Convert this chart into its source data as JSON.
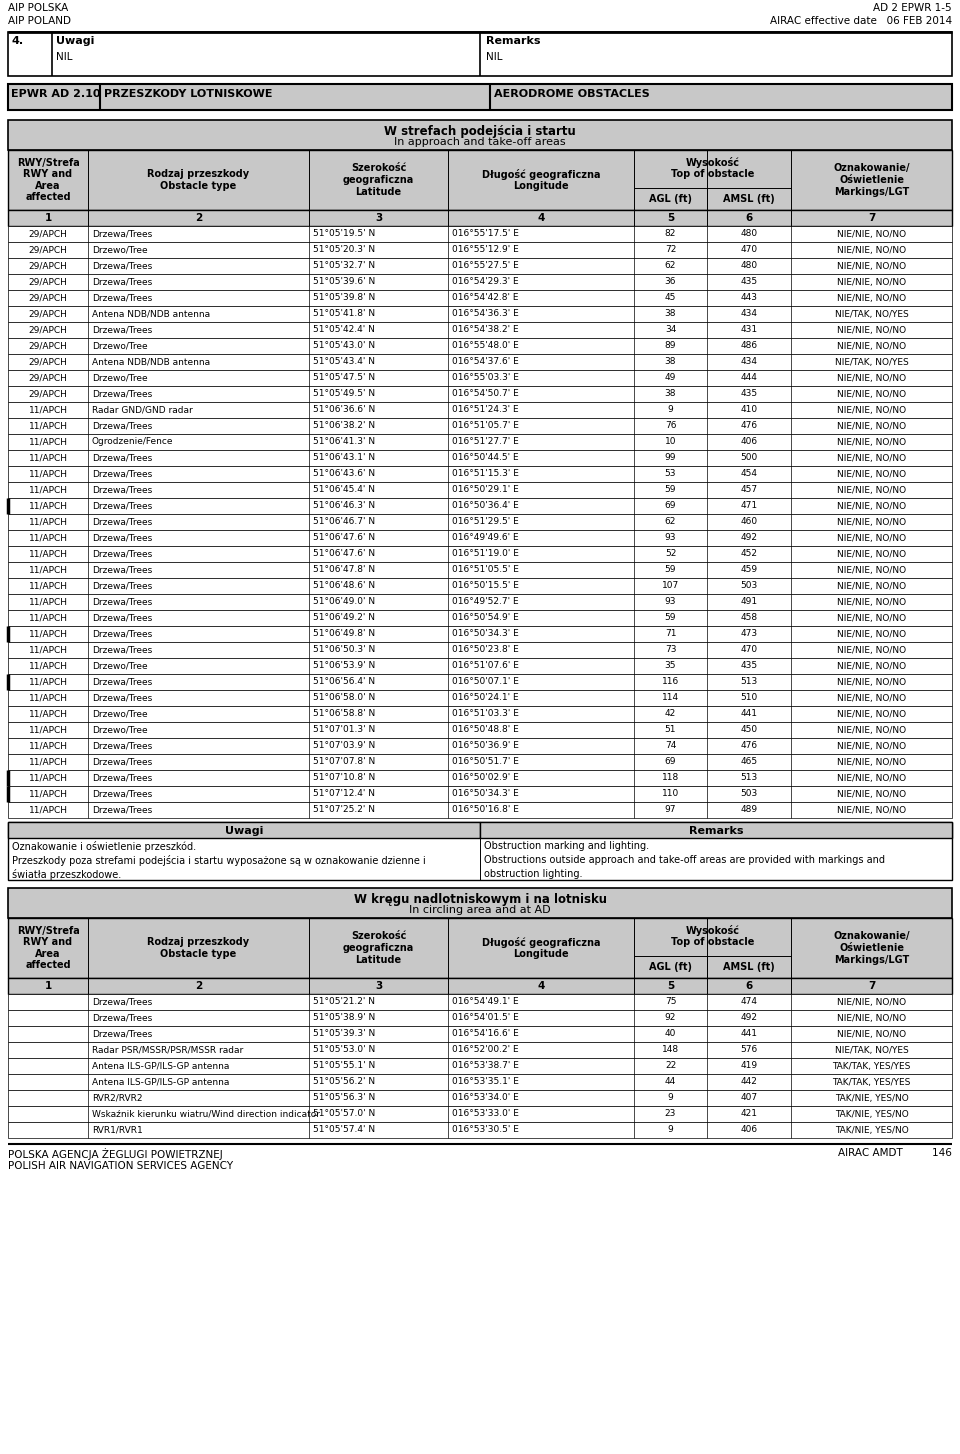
{
  "header_left1": "AIP POLSKA",
  "header_left2": "AIP POLAND",
  "header_right1": "AD 2 EPWR 1-5",
  "header_right2": "AIRAC effective date",
  "header_date": "06 FEB 2014",
  "section4_num": "4.",
  "section4_label_pl": "Uwagi",
  "section4_label_en": "Remarks",
  "section4_val_pl": "NIL",
  "section4_val_en": "NIL",
  "epwr_code": "EPWR AD 2.10",
  "epwr_label_pl": "PRZESZKODY LOTNISKOWE",
  "epwr_label_en": "AERODROME OBSTACLES",
  "table1_title_pl": "W strefach podejścia i startu",
  "table1_title_en": "In approach and take-off areas",
  "rows1": [
    [
      "29/APCH",
      "Drzewa/Trees",
      "51°05'19.5' N",
      "016°55'17.5' E",
      "82",
      "480",
      "NIE/NIE, NO/NO"
    ],
    [
      "29/APCH",
      "Drzewo/Tree",
      "51°05'20.3' N",
      "016°55'12.9' E",
      "72",
      "470",
      "NIE/NIE, NO/NO"
    ],
    [
      "29/APCH",
      "Drzewa/Trees",
      "51°05'32.7' N",
      "016°55'27.5' E",
      "62",
      "480",
      "NIE/NIE, NO/NO"
    ],
    [
      "29/APCH",
      "Drzewa/Trees",
      "51°05'39.6' N",
      "016°54'29.3' E",
      "36",
      "435",
      "NIE/NIE, NO/NO"
    ],
    [
      "29/APCH",
      "Drzewa/Trees",
      "51°05'39.8' N",
      "016°54'42.8' E",
      "45",
      "443",
      "NIE/NIE, NO/NO"
    ],
    [
      "29/APCH",
      "Antena NDB/NDB antenna",
      "51°05'41.8' N",
      "016°54'36.3' E",
      "38",
      "434",
      "NIE/TAK, NO/YES"
    ],
    [
      "29/APCH",
      "Drzewa/Trees",
      "51°05'42.4' N",
      "016°54'38.2' E",
      "34",
      "431",
      "NIE/NIE, NO/NO"
    ],
    [
      "29/APCH",
      "Drzewo/Tree",
      "51°05'43.0' N",
      "016°55'48.0' E",
      "89",
      "486",
      "NIE/NIE, NO/NO"
    ],
    [
      "29/APCH",
      "Antena NDB/NDB antenna",
      "51°05'43.4' N",
      "016°54'37.6' E",
      "38",
      "434",
      "NIE/TAK, NO/YES"
    ],
    [
      "29/APCH",
      "Drzewo/Tree",
      "51°05'47.5' N",
      "016°55'03.3' E",
      "49",
      "444",
      "NIE/NIE, NO/NO"
    ],
    [
      "29/APCH",
      "Drzewa/Trees",
      "51°05'49.5' N",
      "016°54'50.7' E",
      "38",
      "435",
      "NIE/NIE, NO/NO"
    ],
    [
      "11/APCH",
      "Radar GND/GND radar",
      "51°06'36.6' N",
      "016°51'24.3' E",
      "9",
      "410",
      "NIE/NIE, NO/NO"
    ],
    [
      "11/APCH",
      "Drzewa/Trees",
      "51°06'38.2' N",
      "016°51'05.7' E",
      "76",
      "476",
      "NIE/NIE, NO/NO"
    ],
    [
      "11/APCH",
      "Ogrodzenie/Fence",
      "51°06'41.3' N",
      "016°51'27.7' E",
      "10",
      "406",
      "NIE/NIE, NO/NO"
    ],
    [
      "11/APCH",
      "Drzewa/Trees",
      "51°06'43.1' N",
      "016°50'44.5' E",
      "99",
      "500",
      "NIE/NIE, NO/NO"
    ],
    [
      "11/APCH",
      "Drzewa/Trees",
      "51°06'43.6' N",
      "016°51'15.3' E",
      "53",
      "454",
      "NIE/NIE, NO/NO"
    ],
    [
      "11/APCH",
      "Drzewa/Trees",
      "51°06'45.4' N",
      "016°50'29.1' E",
      "59",
      "457",
      "NIE/NIE, NO/NO"
    ],
    [
      "11/APCH",
      "Drzewa/Trees",
      "51°06'46.3' N",
      "016°50'36.4' E",
      "69",
      "471",
      "NIE/NIE, NO/NO",
      "bold_left"
    ],
    [
      "11/APCH",
      "Drzewa/Trees",
      "51°06'46.7' N",
      "016°51'29.5' E",
      "62",
      "460",
      "NIE/NIE, NO/NO"
    ],
    [
      "11/APCH",
      "Drzewa/Trees",
      "51°06'47.6' N",
      "016°49'49.6' E",
      "93",
      "492",
      "NIE/NIE, NO/NO"
    ],
    [
      "11/APCH",
      "Drzewa/Trees",
      "51°06'47.6' N",
      "016°51'19.0' E",
      "52",
      "452",
      "NIE/NIE, NO/NO"
    ],
    [
      "11/APCH",
      "Drzewa/Trees",
      "51°06'47.8' N",
      "016°51'05.5' E",
      "59",
      "459",
      "NIE/NIE, NO/NO"
    ],
    [
      "11/APCH",
      "Drzewa/Trees",
      "51°06'48.6' N",
      "016°50'15.5' E",
      "107",
      "503",
      "NIE/NIE, NO/NO"
    ],
    [
      "11/APCH",
      "Drzewa/Trees",
      "51°06'49.0' N",
      "016°49'52.7' E",
      "93",
      "491",
      "NIE/NIE, NO/NO"
    ],
    [
      "11/APCH",
      "Drzewa/Trees",
      "51°06'49.2' N",
      "016°50'54.9' E",
      "59",
      "458",
      "NIE/NIE, NO/NO"
    ],
    [
      "11/APCH",
      "Drzewa/Trees",
      "51°06'49.8' N",
      "016°50'34.3' E",
      "71",
      "473",
      "NIE/NIE, NO/NO",
      "bold_left"
    ],
    [
      "11/APCH",
      "Drzewa/Trees",
      "51°06'50.3' N",
      "016°50'23.8' E",
      "73",
      "470",
      "NIE/NIE, NO/NO"
    ],
    [
      "11/APCH",
      "Drzewo/Tree",
      "51°06'53.9' N",
      "016°51'07.6' E",
      "35",
      "435",
      "NIE/NIE, NO/NO"
    ],
    [
      "11/APCH",
      "Drzewa/Trees",
      "51°06'56.4' N",
      "016°50'07.1' E",
      "116",
      "513",
      "NIE/NIE, NO/NO",
      "bold_left"
    ],
    [
      "11/APCH",
      "Drzewa/Trees",
      "51°06'58.0' N",
      "016°50'24.1' E",
      "114",
      "510",
      "NIE/NIE, NO/NO"
    ],
    [
      "11/APCH",
      "Drzewo/Tree",
      "51°06'58.8' N",
      "016°51'03.3' E",
      "42",
      "441",
      "NIE/NIE, NO/NO"
    ],
    [
      "11/APCH",
      "Drzewo/Tree",
      "51°07'01.3' N",
      "016°50'48.8' E",
      "51",
      "450",
      "NIE/NIE, NO/NO"
    ],
    [
      "11/APCH",
      "Drzewa/Trees",
      "51°07'03.9' N",
      "016°50'36.9' E",
      "74",
      "476",
      "NIE/NIE, NO/NO"
    ],
    [
      "11/APCH",
      "Drzewa/Trees",
      "51°07'07.8' N",
      "016°50'51.7' E",
      "69",
      "465",
      "NIE/NIE, NO/NO"
    ],
    [
      "11/APCH",
      "Drzewa/Trees",
      "51°07'10.8' N",
      "016°50'02.9' E",
      "118",
      "513",
      "NIE/NIE, NO/NO",
      "bold_left"
    ],
    [
      "11/APCH",
      "Drzewa/Trees",
      "51°07'12.4' N",
      "016°50'34.3' E",
      "110",
      "503",
      "NIE/NIE, NO/NO",
      "bold_left"
    ],
    [
      "11/APCH",
      "Drzewa/Trees",
      "51°07'25.2' N",
      "016°50'16.8' E",
      "97",
      "489",
      "NIE/NIE, NO/NO"
    ]
  ],
  "uwagi_pl1": "Oznakowanie i oświetlenie przeszkód.",
  "uwagi_en1": "Obstruction marking and lighting.",
  "uwagi_pl2": "Przeszkody poza strefami podejścia i startu wyposażone są w oznakowanie dzienne i",
  "uwagi_en2": "Obstructions outside approach and take-off areas are provided with markings and",
  "uwagi_pl3": "światła przeszkodowe.",
  "uwagi_en3": "obstruction lighting.",
  "table2_title_pl": "W kręgu nadlotniskowym i na lotnisku",
  "table2_title_en": "In circling area and at AD",
  "rows2": [
    [
      "",
      "Drzewa/Trees",
      "51°05'21.2' N",
      "016°54'49.1' E",
      "75",
      "474",
      "NIE/NIE, NO/NO"
    ],
    [
      "",
      "Drzewa/Trees",
      "51°05'38.9' N",
      "016°54'01.5' E",
      "92",
      "492",
      "NIE/NIE, NO/NO"
    ],
    [
      "",
      "Drzewa/Trees",
      "51°05'39.3' N",
      "016°54'16.6' E",
      "40",
      "441",
      "NIE/NIE, NO/NO"
    ],
    [
      "",
      "Radar PSR/MSSR/PSR/MSSR radar",
      "51°05'53.0' N",
      "016°52'00.2' E",
      "148",
      "576",
      "NIE/TAK, NO/YES"
    ],
    [
      "",
      "Antena ILS-GP/ILS-GP antenna",
      "51°05'55.1' N",
      "016°53'38.7' E",
      "22",
      "419",
      "TAK/TAK, YES/YES"
    ],
    [
      "",
      "Antena ILS-GP/ILS-GP antenna",
      "51°05'56.2' N",
      "016°53'35.1' E",
      "44",
      "442",
      "TAK/TAK, YES/YES"
    ],
    [
      "",
      "RVR2/RVR2",
      "51°05'56.3' N",
      "016°53'34.0' E",
      "9",
      "407",
      "TAK/NIE, YES/NO"
    ],
    [
      "",
      "Wskaźnik kierunku wiatru/Wind direction indicator",
      "51°05'57.0' N",
      "016°53'33.0' E",
      "23",
      "421",
      "TAK/NIE, YES/NO"
    ],
    [
      "",
      "RVR1/RVR1",
      "51°05'57.4' N",
      "016°53'30.5' E",
      "9",
      "406",
      "TAK/NIE, YES/NO"
    ]
  ],
  "footer_left1": "POLSKA AGENCJA ŻEGLUGI POWIETRZNEJ",
  "footer_left2": "POLISH AIR NAVIGATION SERVICES AGENCY",
  "footer_right": "AIRAC AMDT         146",
  "gray_bg": "#c8c8c8",
  "white_bg": "#ffffff"
}
